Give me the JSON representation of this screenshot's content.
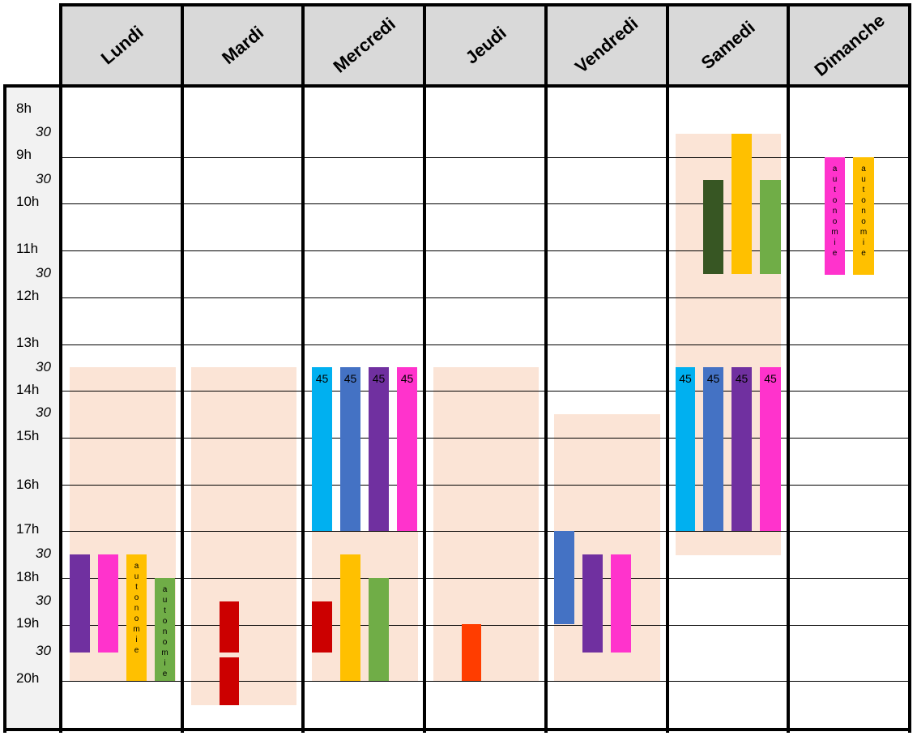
{
  "days": [
    "Lundi",
    "Mardi",
    "Mercredi",
    "Jeudi",
    "Vendredi",
    "Samedi",
    "Dimanche"
  ],
  "time_labels": [
    {
      "text": "8h",
      "kind": "hour"
    },
    {
      "text": "30",
      "kind": "half"
    },
    {
      "text": "9h",
      "kind": "hour"
    },
    {
      "text": "30",
      "kind": "half"
    },
    {
      "text": "10h",
      "kind": "hour"
    },
    {
      "text": "11h",
      "kind": "hour"
    },
    {
      "text": "30",
      "kind": "half"
    },
    {
      "text": "12h",
      "kind": "hour"
    },
    {
      "text": "13h",
      "kind": "hour"
    },
    {
      "text": "30",
      "kind": "half"
    },
    {
      "text": "14h",
      "kind": "hour"
    },
    {
      "text": "30",
      "kind": "half"
    },
    {
      "text": "15h",
      "kind": "hour"
    },
    {
      "text": "16h",
      "kind": "hour"
    },
    {
      "text": "17h",
      "kind": "hour"
    },
    {
      "text": "30",
      "kind": "half"
    },
    {
      "text": "18h",
      "kind": "hour"
    },
    {
      "text": "30",
      "kind": "half"
    },
    {
      "text": "19h",
      "kind": "hour"
    },
    {
      "text": "30",
      "kind": "half"
    },
    {
      "text": "20h",
      "kind": "hour"
    }
  ],
  "colors": {
    "zone": "#fbe4d6",
    "purple": "#7030a0",
    "magenta": "#ff33cc",
    "orange": "#ffc000",
    "green": "#70ad47",
    "dark_green": "#375623",
    "red": "#cc0000",
    "orange_red": "#ff3d00",
    "cyan": "#00b0f0",
    "blue": "#4472c4"
  },
  "bars": {
    "autonomie_text": "autonomie",
    "duration_label": "45"
  }
}
